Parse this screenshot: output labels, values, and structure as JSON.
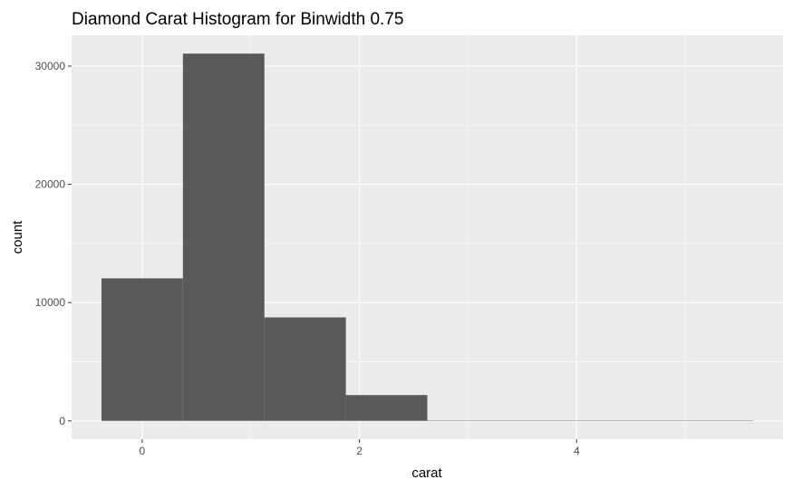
{
  "chart_data": {
    "type": "bar",
    "title": "Diamond Carat Histogram for Binwidth 0.75",
    "xlabel": "carat",
    "ylabel": "count",
    "bins": [
      {
        "x0": -0.375,
        "x1": 0.375,
        "count": 12050
      },
      {
        "x0": 0.375,
        "x1": 1.125,
        "count": 31050
      },
      {
        "x0": 1.125,
        "x1": 1.875,
        "count": 8750
      },
      {
        "x0": 1.875,
        "x1": 2.625,
        "count": 2180
      },
      {
        "x0": 2.625,
        "x1": 3.375,
        "count": 0
      },
      {
        "x0": 3.375,
        "x1": 4.125,
        "count": 0
      },
      {
        "x0": 4.125,
        "x1": 4.875,
        "count": 0
      },
      {
        "x0": 4.875,
        "x1": 5.625,
        "count": 0
      }
    ],
    "x_ticks": [
      0,
      2,
      4
    ],
    "y_ticks": [
      0,
      10000,
      20000,
      30000
    ],
    "xlim": [
      -0.65,
      5.9
    ],
    "ylim": [
      -1550,
      32600
    ],
    "grid": true,
    "colors": {
      "bar": "#595959",
      "panel": "#ebebeb",
      "grid": "#ffffff"
    }
  }
}
